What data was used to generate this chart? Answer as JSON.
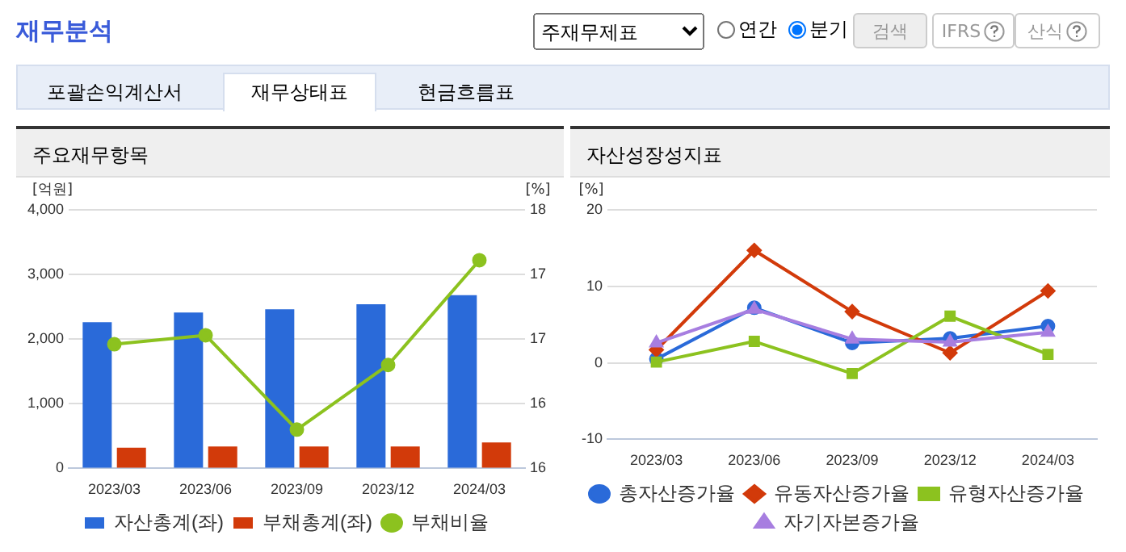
{
  "chart_data": [
    {
      "type": "other",
      "title": "재무분석",
      "annotations": [
        "주재무제표",
        "연간",
        "분기",
        "검색",
        "IFRS",
        "산식",
        "포괄손익계산서",
        "재무상태표",
        "현금흐름표"
      ]
    },
    {
      "type": "bar",
      "title": "주요재무항목",
      "ylabel": "[억원]",
      "y2label": "[%]",
      "categories": [
        "2023/03",
        "2023/06",
        "2023/09",
        "2023/12",
        "2024/03"
      ],
      "series": [
        {
          "name": "자산총계(좌)",
          "color": "#2a6ad9",
          "values": [
            2260,
            2410,
            2460,
            2540,
            2680
          ]
        },
        {
          "name": "부채총계(좌)",
          "color": "#d23a0a",
          "values": [
            320,
            340,
            340,
            340,
            400
          ]
        },
        {
          "name": "부채비율",
          "type": "line",
          "axis": "y2",
          "marker": "circle",
          "color": "#8cc21f",
          "values": [
            16.96,
            17.03,
            16.3,
            16.8,
            17.61
          ]
        }
      ],
      "ylim": [
        0,
        4000
      ],
      "yticks": [
        0,
        {
          "value": 1000,
          "label": "1,000"
        },
        {
          "value": 2000,
          "label": "2,000"
        },
        {
          "value": 3000,
          "label": "3,000"
        },
        {
          "value": 4000,
          "label": "4,000"
        }
      ],
      "y2lim": [
        16,
        18
      ],
      "y2ticks": [
        16,
        {
          "value": 16.5,
          "label": "16"
        },
        17,
        {
          "value": 17.5,
          "label": "17"
        },
        18
      ],
      "grid": "y",
      "legend": "bottom"
    },
    {
      "type": "line",
      "title": "자산성장성지표",
      "ylabel": "[%]",
      "categories": [
        "2023/03",
        "2023/06",
        "2023/09",
        "2023/12",
        "2024/03"
      ],
      "series": [
        {
          "name": "총자산증가율",
          "color": "#2a6ad9",
          "marker": "circle",
          "values": [
            0.5,
            7.2,
            2.6,
            3.2,
            4.8
          ]
        },
        {
          "name": "유동자산증가율",
          "color": "#d23a0a",
          "marker": "diamond",
          "values": [
            1.7,
            14.7,
            6.7,
            1.3,
            9.4
          ]
        },
        {
          "name": "유형자산증가율",
          "color": "#8cc21f",
          "marker": "square",
          "values": [
            0.1,
            2.8,
            -1.4,
            6.1,
            1.1
          ]
        },
        {
          "name": "자기자본증가율",
          "color": "#a77ee0",
          "marker": "triangle",
          "values": [
            2.6,
            7.0,
            3.1,
            2.7,
            4.0
          ]
        }
      ],
      "ylim": [
        -10,
        20
      ],
      "yticks": [
        -10,
        0,
        10,
        20
      ],
      "grid": "y",
      "legend": "bottom"
    }
  ]
}
